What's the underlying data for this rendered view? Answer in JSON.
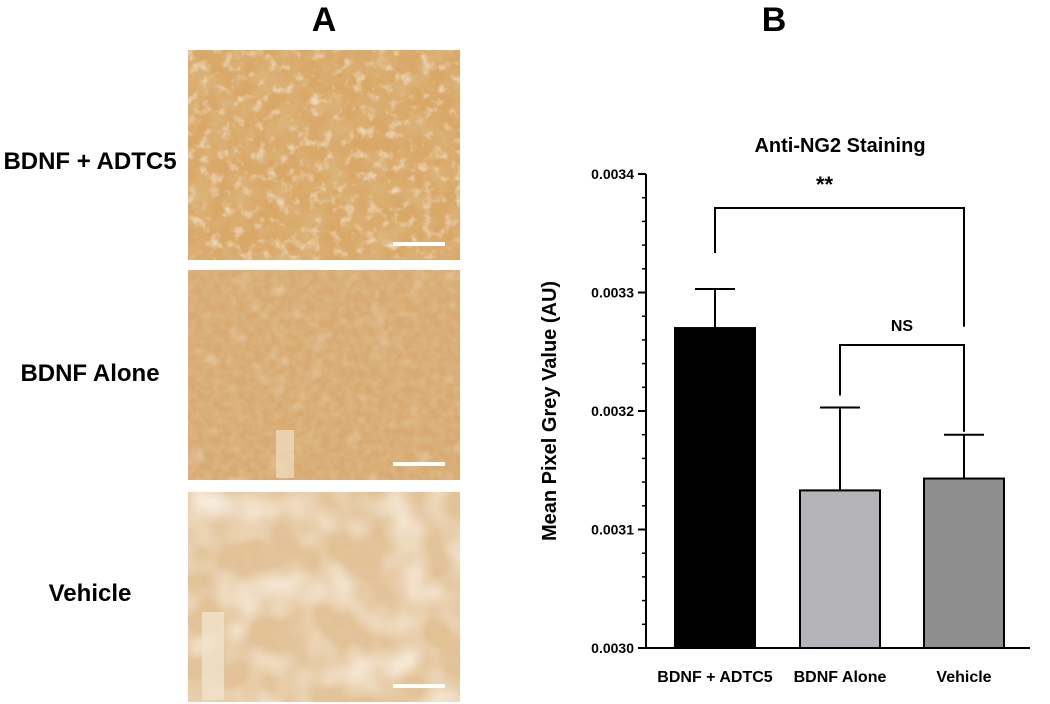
{
  "panels": {
    "a_label": "A",
    "b_label": "B"
  },
  "micrographs": [
    {
      "label": "BDNF + ADTC5",
      "texture": "dense",
      "scale_bar": true
    },
    {
      "label": "BDNF Alone",
      "texture": "fine",
      "scale_bar": true
    },
    {
      "label": "Vehicle",
      "texture": "pale",
      "scale_bar": true
    }
  ],
  "colors": {
    "stain_base": "#d4a368",
    "stain_dark": "#b87a38",
    "stain_light": "#ecd3ae"
  },
  "chart_data": {
    "type": "bar",
    "title": "Anti-NG2 Staining",
    "xlabel": "",
    "ylabel": "Mean Pixel Grey Value (AU)",
    "ylim": [
      0.003,
      0.0034
    ],
    "yticks": [
      "0.0030",
      "0.0031",
      "0.0032",
      "0.0033",
      "0.0034"
    ],
    "ytick_values": [
      0.003,
      0.0031,
      0.0032,
      0.0033,
      0.0034
    ],
    "minor_ticks_per_major": 4,
    "grid": false,
    "categories": [
      "BDNF + ADTC5",
      "BDNF Alone",
      "Vehicle"
    ],
    "values": [
      0.00327,
      0.003133,
      0.003143
    ],
    "errors": [
      3.3e-05,
      7e-05,
      3.7e-05
    ],
    "colors": [
      "#000000",
      "#b4b4b8",
      "#8e8e8e"
    ],
    "significance": [
      {
        "from": 0,
        "to": 2,
        "label": "**"
      },
      {
        "from": 1,
        "to": 2,
        "label": "NS"
      }
    ]
  }
}
